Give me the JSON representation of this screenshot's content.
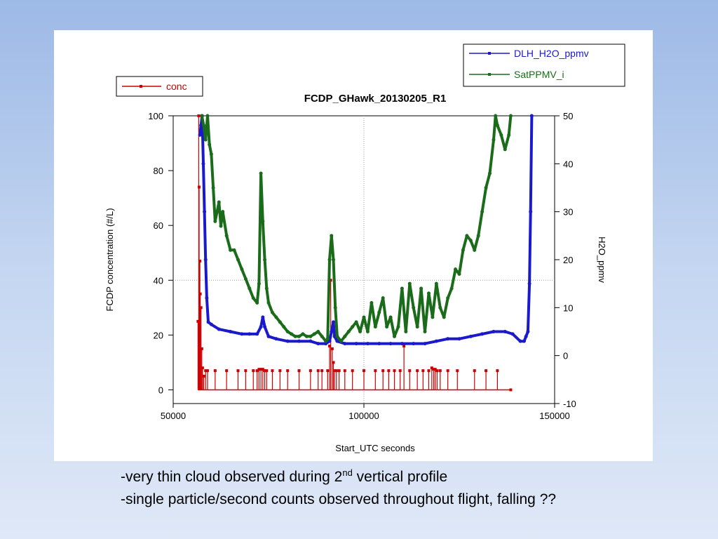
{
  "chart_data": {
    "type": "line",
    "title": "FCDP_GHawk_20130205_R1",
    "xlabel": "Start_UTC seconds",
    "ylabel_left": "FCDP concentration (#/L)",
    "ylabel_right": "H2O_ppmv",
    "xlim": [
      50000,
      150000
    ],
    "ylim_left": [
      -5,
      100
    ],
    "ylim_right": [
      -10,
      50
    ],
    "xticks": [
      "50000",
      "100000",
      "150000"
    ],
    "yticks_left": [
      "0",
      "20",
      "40",
      "60",
      "80",
      "100"
    ],
    "yticks_right": [
      "-10",
      "0",
      "10",
      "20",
      "30",
      "40",
      "50"
    ],
    "grid": "dotted center lines",
    "legends": [
      {
        "position": "top-left",
        "entries": [
          "conc"
        ]
      },
      {
        "position": "top-right",
        "entries": [
          "DLH_H2O_ppmv",
          "SatPPMV_i"
        ]
      }
    ],
    "series": [
      {
        "name": "conc",
        "axis": "left",
        "color": "#cc0000",
        "x": [
          56500,
          56700,
          56800,
          57000,
          57100,
          57300,
          57500,
          57700,
          58000,
          58500,
          59000,
          61000,
          64000,
          67000,
          69000,
          71000,
          72000,
          72500,
          73000,
          73500,
          74000,
          74500,
          76000,
          78000,
          80000,
          83000,
          86000,
          88000,
          89000,
          90500,
          91000,
          91300,
          91700,
          92000,
          92300,
          92800,
          93500,
          95000,
          97000,
          100000,
          103000,
          105000,
          106500,
          108000,
          109500,
          110500,
          112000,
          114000,
          115500,
          117000,
          117800,
          118300,
          118700,
          119200,
          120000,
          122000,
          124500,
          129000,
          132000,
          135000,
          138500
        ],
        "y": [
          25,
          100,
          74,
          47,
          35,
          30,
          15,
          8,
          5,
          7,
          7,
          7,
          7,
          7,
          7,
          7,
          7,
          7.5,
          7.5,
          7.5,
          7,
          7,
          7,
          7,
          7,
          7,
          7,
          7,
          7,
          7,
          16,
          40,
          15,
          10,
          7,
          7,
          7,
          7,
          7,
          7,
          7,
          7,
          7,
          7,
          7,
          16,
          7,
          7,
          7,
          7,
          8,
          7.5,
          7.5,
          7,
          7,
          7,
          7,
          7,
          7,
          7,
          0
        ]
      },
      {
        "name": "DLH_H2O_ppmv",
        "axis": "right",
        "color": "#1a1acc",
        "x": [
          57000,
          57300,
          57600,
          57900,
          58200,
          58500,
          58800,
          59200,
          60000,
          62000,
          65000,
          68000,
          70000,
          72000,
          73000,
          73500,
          74000,
          75000,
          77000,
          80000,
          83000,
          86000,
          88000,
          90000,
          91000,
          91500,
          92000,
          92300,
          93000,
          95000,
          98000,
          101000,
          104000,
          107000,
          110000,
          113000,
          116000,
          119000,
          122000,
          125000,
          128000,
          131000,
          134000,
          137000,
          139000,
          141000,
          142000,
          142500,
          143000,
          143400,
          143700,
          144000
        ],
        "y": [
          46,
          48,
          50,
          40,
          30,
          20,
          12,
          7,
          6.5,
          5.5,
          5,
          4.5,
          4.5,
          4.5,
          6,
          8,
          6,
          4,
          3.5,
          3,
          3,
          3,
          2.5,
          2.5,
          3,
          5,
          7,
          4,
          3,
          2.5,
          2.5,
          2.5,
          2.5,
          2.5,
          2.5,
          2.5,
          2.5,
          3,
          3.5,
          3.5,
          4,
          4.5,
          5,
          5,
          4.5,
          3,
          3,
          4,
          5,
          15,
          30,
          50
        ]
      },
      {
        "name": "SatPPMV_i",
        "axis": "right",
        "color": "#1a6b1a",
        "x": [
          57500,
          58000,
          58500,
          59000,
          59500,
          60000,
          60500,
          61000,
          61500,
          62000,
          62500,
          63000,
          64000,
          65000,
          66000,
          67000,
          68000,
          69000,
          70000,
          71000,
          72000,
          72500,
          73000,
          73500,
          74000,
          74500,
          75000,
          76000,
          77000,
          78000,
          79000,
          80000,
          81000,
          82000,
          83000,
          84000,
          85000,
          86000,
          87000,
          88000,
          89000,
          90000,
          90500,
          91000,
          91500,
          92000,
          92500,
          93000,
          94000,
          95000,
          96000,
          97000,
          98000,
          99000,
          100000,
          101000,
          102000,
          103000,
          104000,
          105000,
          106000,
          107000,
          108000,
          109000,
          110000,
          111000,
          112000,
          113000,
          114000,
          115000,
          116000,
          117000,
          118000,
          119000,
          120000,
          121000,
          122000,
          123000,
          124000,
          125000,
          126000,
          127000,
          128000,
          129000,
          130000,
          131000,
          132000,
          133000,
          134000,
          134500,
          135000,
          136000,
          137000,
          138000,
          138500
        ],
        "y": [
          50,
          48,
          45,
          50,
          44,
          42,
          35,
          28,
          30,
          32,
          27,
          30,
          25,
          22,
          22,
          20,
          18,
          16,
          14,
          12,
          11,
          15,
          38,
          28,
          20,
          14,
          11,
          9,
          8,
          7,
          6,
          5,
          4.5,
          4,
          4,
          4.5,
          4,
          4,
          4.5,
          5,
          4,
          3,
          3.5,
          20,
          25,
          20,
          10,
          4,
          3,
          4,
          5,
          6,
          7,
          5,
          8,
          5,
          11,
          6,
          9,
          12,
          6,
          8,
          4,
          6,
          14,
          5,
          15,
          10,
          6,
          14,
          5,
          13,
          8,
          15,
          10,
          8,
          12,
          14,
          18,
          17,
          22,
          25,
          24,
          22,
          25,
          30,
          35,
          38,
          45,
          50,
          48,
          46,
          43,
          46,
          50
        ]
      }
    ]
  },
  "caption": {
    "line1_before": "-very thin cloud observed during 2",
    "line1_sup": "nd",
    "line1_after": " vertical profile",
    "line2": "-single particle/second counts observed throughout flight, falling ??"
  }
}
